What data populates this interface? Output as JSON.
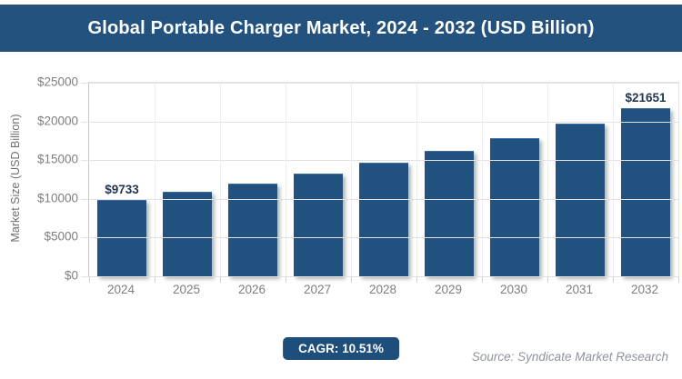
{
  "header": {
    "title": "Global Portable Charger Market, 2024 - 2032 (USD Billion)"
  },
  "chart_data": {
    "type": "bar",
    "title": "Global Portable Charger Market, 2024 - 2032 (USD Billion)",
    "categories": [
      "2024",
      "2025",
      "2026",
      "2027",
      "2028",
      "2029",
      "2030",
      "2031",
      "2032"
    ],
    "values": [
      9733,
      10756,
      11886,
      13136,
      14517,
      16042,
      17728,
      19591,
      21651
    ],
    "value_labels": [
      "$9733",
      null,
      null,
      null,
      null,
      null,
      null,
      null,
      "$21651"
    ],
    "xlabel": "",
    "ylabel": "Market Size (USD Billion)",
    "ylim": [
      0,
      25000
    ],
    "ytick_labels": [
      "$25000",
      "$20000",
      "$15000",
      "$10000",
      "$5000",
      "$0"
    ],
    "grid": true,
    "legend": false
  },
  "footer": {
    "cagr_label": "CAGR: 10.51%",
    "source": "Source: Syndicate Market Research"
  },
  "colors": {
    "header_bg": "#24527F",
    "bar_fill": "#21517F",
    "badge_bg": "#1E4E7C",
    "accent_navy": "#1F4E79"
  }
}
